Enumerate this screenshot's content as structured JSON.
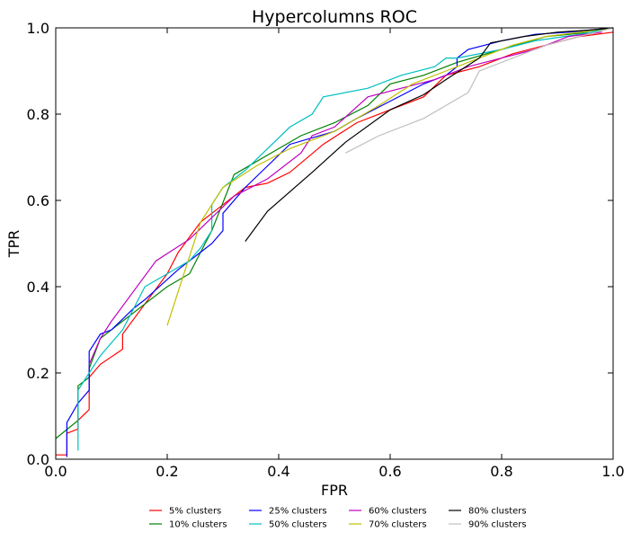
{
  "chart_data": {
    "type": "line",
    "title": "Hypercolumns ROC",
    "xlabel": "FPR",
    "ylabel": "TPR",
    "xlim": [
      0,
      1
    ],
    "ylim": [
      0,
      1
    ],
    "x_ticks": [
      "0.0",
      "0.2",
      "0.4",
      "0.6",
      "0.8",
      "1.0"
    ],
    "y_ticks": [
      "0.0",
      "0.2",
      "0.4",
      "0.6",
      "0.8",
      "1.0"
    ],
    "grid": false,
    "legend_position": "bottom-center",
    "series": [
      {
        "name": "5% clusters",
        "color": "#ff0000",
        "points": [
          [
            0,
            0.01
          ],
          [
            0.02,
            0.01
          ],
          [
            0.02,
            0.06
          ],
          [
            0.04,
            0.07
          ],
          [
            0.04,
            0.09
          ],
          [
            0.06,
            0.115
          ],
          [
            0.06,
            0.19
          ],
          [
            0.08,
            0.22
          ],
          [
            0.12,
            0.255
          ],
          [
            0.12,
            0.29
          ],
          [
            0.16,
            0.36
          ],
          [
            0.2,
            0.43
          ],
          [
            0.22,
            0.48
          ],
          [
            0.26,
            0.55
          ],
          [
            0.3,
            0.59
          ],
          [
            0.34,
            0.63
          ],
          [
            0.38,
            0.64
          ],
          [
            0.42,
            0.665
          ],
          [
            0.48,
            0.73
          ],
          [
            0.54,
            0.78
          ],
          [
            0.6,
            0.81
          ],
          [
            0.66,
            0.84
          ],
          [
            0.7,
            0.89
          ],
          [
            0.76,
            0.91
          ],
          [
            0.82,
            0.94
          ],
          [
            0.88,
            0.96
          ],
          [
            0.94,
            0.98
          ],
          [
            1.0,
            0.99
          ]
        ]
      },
      {
        "name": "10% clusters",
        "color": "#008000",
        "points": [
          [
            0,
            0.048
          ],
          [
            0.04,
            0.09
          ],
          [
            0.04,
            0.17
          ],
          [
            0.06,
            0.19
          ],
          [
            0.06,
            0.21
          ],
          [
            0.08,
            0.28
          ],
          [
            0.12,
            0.32
          ],
          [
            0.16,
            0.36
          ],
          [
            0.2,
            0.4
          ],
          [
            0.24,
            0.43
          ],
          [
            0.28,
            0.53
          ],
          [
            0.32,
            0.66
          ],
          [
            0.4,
            0.72
          ],
          [
            0.44,
            0.75
          ],
          [
            0.5,
            0.78
          ],
          [
            0.56,
            0.82
          ],
          [
            0.6,
            0.87
          ],
          [
            0.66,
            0.89
          ],
          [
            0.72,
            0.92
          ],
          [
            0.8,
            0.95
          ],
          [
            0.88,
            0.98
          ],
          [
            0.96,
            0.99
          ],
          [
            1.0,
            1.0
          ]
        ]
      },
      {
        "name": "25% clusters",
        "color": "#0000ff",
        "points": [
          [
            0.02,
            0.005
          ],
          [
            0.02,
            0.085
          ],
          [
            0.04,
            0.13
          ],
          [
            0.06,
            0.16
          ],
          [
            0.06,
            0.25
          ],
          [
            0.08,
            0.29
          ],
          [
            0.1,
            0.3
          ],
          [
            0.14,
            0.35
          ],
          [
            0.16,
            0.37
          ],
          [
            0.22,
            0.44
          ],
          [
            0.26,
            0.48
          ],
          [
            0.28,
            0.5
          ],
          [
            0.3,
            0.53
          ],
          [
            0.3,
            0.57
          ],
          [
            0.34,
            0.63
          ],
          [
            0.42,
            0.73
          ],
          [
            0.5,
            0.76
          ],
          [
            0.54,
            0.79
          ],
          [
            0.6,
            0.83
          ],
          [
            0.66,
            0.87
          ],
          [
            0.7,
            0.89
          ],
          [
            0.72,
            0.91
          ],
          [
            0.72,
            0.93
          ],
          [
            0.74,
            0.95
          ],
          [
            0.8,
            0.97
          ],
          [
            0.86,
            0.985
          ],
          [
            0.92,
            0.99
          ],
          [
            0.96,
            0.995
          ],
          [
            1.0,
            1.0
          ]
        ]
      },
      {
        "name": "50% clusters",
        "color": "#00bfbf",
        "points": [
          [
            0.04,
            0.02
          ],
          [
            0.04,
            0.16
          ],
          [
            0.06,
            0.2
          ],
          [
            0.08,
            0.24
          ],
          [
            0.12,
            0.3
          ],
          [
            0.16,
            0.4
          ],
          [
            0.2,
            0.43
          ],
          [
            0.24,
            0.46
          ],
          [
            0.26,
            0.49
          ],
          [
            0.28,
            0.53
          ],
          [
            0.28,
            0.59
          ],
          [
            0.3,
            0.63
          ],
          [
            0.34,
            0.67
          ],
          [
            0.42,
            0.77
          ],
          [
            0.46,
            0.8
          ],
          [
            0.48,
            0.84
          ],
          [
            0.56,
            0.86
          ],
          [
            0.62,
            0.89
          ],
          [
            0.68,
            0.91
          ],
          [
            0.7,
            0.93
          ],
          [
            0.72,
            0.93
          ],
          [
            0.8,
            0.95
          ],
          [
            0.86,
            0.97
          ],
          [
            0.94,
            0.985
          ],
          [
            1.0,
            1.0
          ]
        ]
      },
      {
        "name": "60% clusters",
        "color": "#bf00bf",
        "points": [
          [
            0.06,
            0.22
          ],
          [
            0.08,
            0.28
          ],
          [
            0.1,
            0.32
          ],
          [
            0.14,
            0.39
          ],
          [
            0.18,
            0.46
          ],
          [
            0.24,
            0.51
          ],
          [
            0.28,
            0.56
          ],
          [
            0.32,
            0.61
          ],
          [
            0.38,
            0.65
          ],
          [
            0.44,
            0.71
          ],
          [
            0.46,
            0.75
          ],
          [
            0.5,
            0.77
          ],
          [
            0.56,
            0.84
          ],
          [
            0.62,
            0.86
          ],
          [
            0.68,
            0.88
          ],
          [
            0.74,
            0.91
          ],
          [
            0.8,
            0.93
          ],
          [
            0.86,
            0.95
          ],
          [
            0.92,
            0.98
          ],
          [
            0.98,
            0.99
          ]
        ]
      },
      {
        "name": "70% clusters",
        "color": "#bfbf00",
        "points": [
          [
            0.2,
            0.31
          ],
          [
            0.26,
            0.55
          ],
          [
            0.3,
            0.63
          ],
          [
            0.36,
            0.68
          ],
          [
            0.42,
            0.72
          ],
          [
            0.5,
            0.76
          ],
          [
            0.58,
            0.82
          ],
          [
            0.64,
            0.87
          ],
          [
            0.7,
            0.9
          ],
          [
            0.76,
            0.93
          ],
          [
            0.82,
            0.96
          ],
          [
            0.88,
            0.98
          ],
          [
            0.94,
            0.99
          ],
          [
            1.0,
            1.0
          ]
        ]
      },
      {
        "name": "80% clusters",
        "color": "#000000",
        "points": [
          [
            0.34,
            0.505
          ],
          [
            0.38,
            0.575
          ],
          [
            0.46,
            0.665
          ],
          [
            0.52,
            0.735
          ],
          [
            0.6,
            0.81
          ],
          [
            0.66,
            0.845
          ],
          [
            0.7,
            0.88
          ],
          [
            0.76,
            0.93
          ],
          [
            0.78,
            0.965
          ],
          [
            0.84,
            0.98
          ],
          [
            0.9,
            0.99
          ],
          [
            0.96,
            0.995
          ],
          [
            1.0,
            1.0
          ]
        ]
      },
      {
        "name": "90% clusters",
        "color": "#bfbfbf",
        "points": [
          [
            0.52,
            0.71
          ],
          [
            0.58,
            0.75
          ],
          [
            0.66,
            0.79
          ],
          [
            0.74,
            0.85
          ],
          [
            0.76,
            0.9
          ],
          [
            0.82,
            0.93
          ],
          [
            0.88,
            0.96
          ],
          [
            0.94,
            0.98
          ],
          [
            1.0,
            1.0
          ]
        ]
      }
    ]
  }
}
